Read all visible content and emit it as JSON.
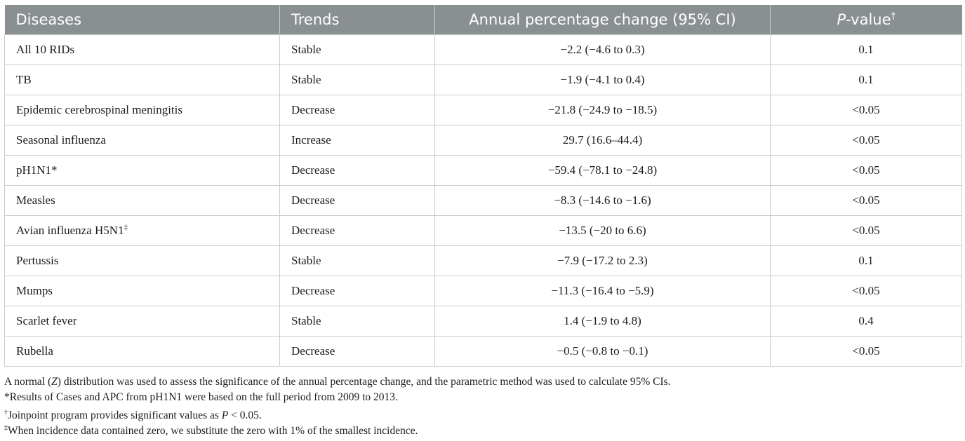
{
  "table": {
    "headers": {
      "diseases": "Diseases",
      "trends": "Trends",
      "apc": "Annual percentage change (95% CI)",
      "p_value_prefix": "P",
      "p_value_suffix": "-value",
      "p_value_mark": "†"
    },
    "rows": [
      {
        "disease": "All 10 RIDs",
        "mark": "",
        "trend": "Stable",
        "apc": "−2.2 (−4.6 to 0.3)",
        "p": "0.1"
      },
      {
        "disease": "TB",
        "mark": "",
        "trend": "Stable",
        "apc": "−1.9 (−4.1 to 0.4)",
        "p": "0.1"
      },
      {
        "disease": "Epidemic cerebrospinal meningitis",
        "mark": "",
        "trend": "Decrease",
        "apc": "−21.8 (−24.9 to −18.5)",
        "p": "<0.05"
      },
      {
        "disease": "Seasonal influenza",
        "mark": "",
        "trend": "Increase",
        "apc": "29.7 (16.6–44.4)",
        "p": "<0.05"
      },
      {
        "disease": "pH1N1*",
        "mark": "",
        "trend": "Decrease",
        "apc": "−59.4 (−78.1 to −24.8)",
        "p": "<0.05"
      },
      {
        "disease": "Measles",
        "mark": "",
        "trend": "Decrease",
        "apc": "−8.3 (−14.6 to −1.6)",
        "p": "<0.05"
      },
      {
        "disease": "Avian influenza H5N1",
        "mark": "‡",
        "trend": "Decrease",
        "apc": "−13.5 (−20 to 6.6)",
        "p": "<0.05"
      },
      {
        "disease": "Pertussis",
        "mark": "",
        "trend": "Stable",
        "apc": "−7.9 (−17.2 to 2.3)",
        "p": "0.1"
      },
      {
        "disease": "Mumps",
        "mark": "",
        "trend": "Decrease",
        "apc": "−11.3 (−16.4 to −5.9)",
        "p": "<0.05"
      },
      {
        "disease": "Scarlet fever",
        "mark": "",
        "trend": "Stable",
        "apc": "1.4 (−1.9 to 4.8)",
        "p": "0.4"
      },
      {
        "disease": "Rubella",
        "mark": "",
        "trend": "Decrease",
        "apc": "−0.5 (−0.8 to −0.1)",
        "p": "<0.05"
      }
    ]
  },
  "footnotes": {
    "n1_a": "A normal (",
    "n1_z": "Z",
    "n1_b": ") distribution was used to assess the significance of the annual percentage change, and the parametric method was used to calculate 95% CIs.",
    "n2": "*Results of Cases and APC from pH1N1 were based on the full period from 2009 to 2013.",
    "n3_mark": "†",
    "n3_a": "Joinpoint program provides significant values as ",
    "n3_p": "P",
    "n3_b": " < 0.05.",
    "n4_mark": "‡",
    "n4": "When incidence data contained zero, we substitute the zero with 1% of the smallest incidence."
  },
  "colors": {
    "header_bg": "#8a8f92",
    "header_text": "#ffffff",
    "grid": "#c9cccd"
  }
}
